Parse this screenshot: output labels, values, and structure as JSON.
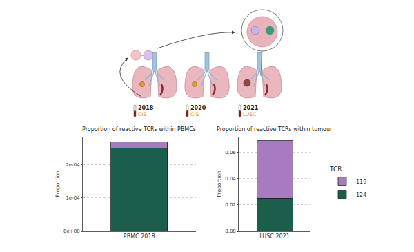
{
  "diagram": {
    "timepoints": [
      {
        "year": "2018",
        "stage": "CIS"
      },
      {
        "year": "2020",
        "stage": "CIS"
      },
      {
        "year": "2021",
        "stage": "LUSC"
      }
    ]
  },
  "chart_data": [
    {
      "type": "bar",
      "stacked": true,
      "title": "Proportion of reactive TCRs within PBMCs",
      "y_label": "Proportion",
      "categories": [
        "PBMC 2018"
      ],
      "series": [
        {
          "name": "124",
          "color": "#1b5e4b",
          "values": [
            0.00025
          ]
        },
        {
          "name": "119",
          "color": "#a77bc0",
          "values": [
            2e-05
          ]
        }
      ],
      "ylim": [
        0,
        0.000285
      ],
      "yticks": [
        {
          "value": 0,
          "label": "0e+00"
        },
        {
          "value": 0.0001,
          "label": "1e-04"
        },
        {
          "value": 0.0002,
          "label": "2e-04"
        }
      ],
      "grid": true
    },
    {
      "type": "bar",
      "stacked": true,
      "title": "Proportion of reactive TCRs within tumour",
      "y_label": "Proportion",
      "categories": [
        "LUSC 2021"
      ],
      "series": [
        {
          "name": "124",
          "color": "#1b5e4b",
          "values": [
            0.025
          ]
        },
        {
          "name": "119",
          "color": "#a77bc0",
          "values": [
            0.044
          ]
        }
      ],
      "ylim": [
        0,
        0.072
      ],
      "yticks": [
        {
          "value": 0,
          "label": "0.00"
        },
        {
          "value": 0.02,
          "label": "0.02"
        },
        {
          "value": 0.04,
          "label": "0.04"
        },
        {
          "value": 0.06,
          "label": "0.06"
        }
      ],
      "grid": true,
      "legend": "right",
      "legend_title": "TCR"
    }
  ]
}
